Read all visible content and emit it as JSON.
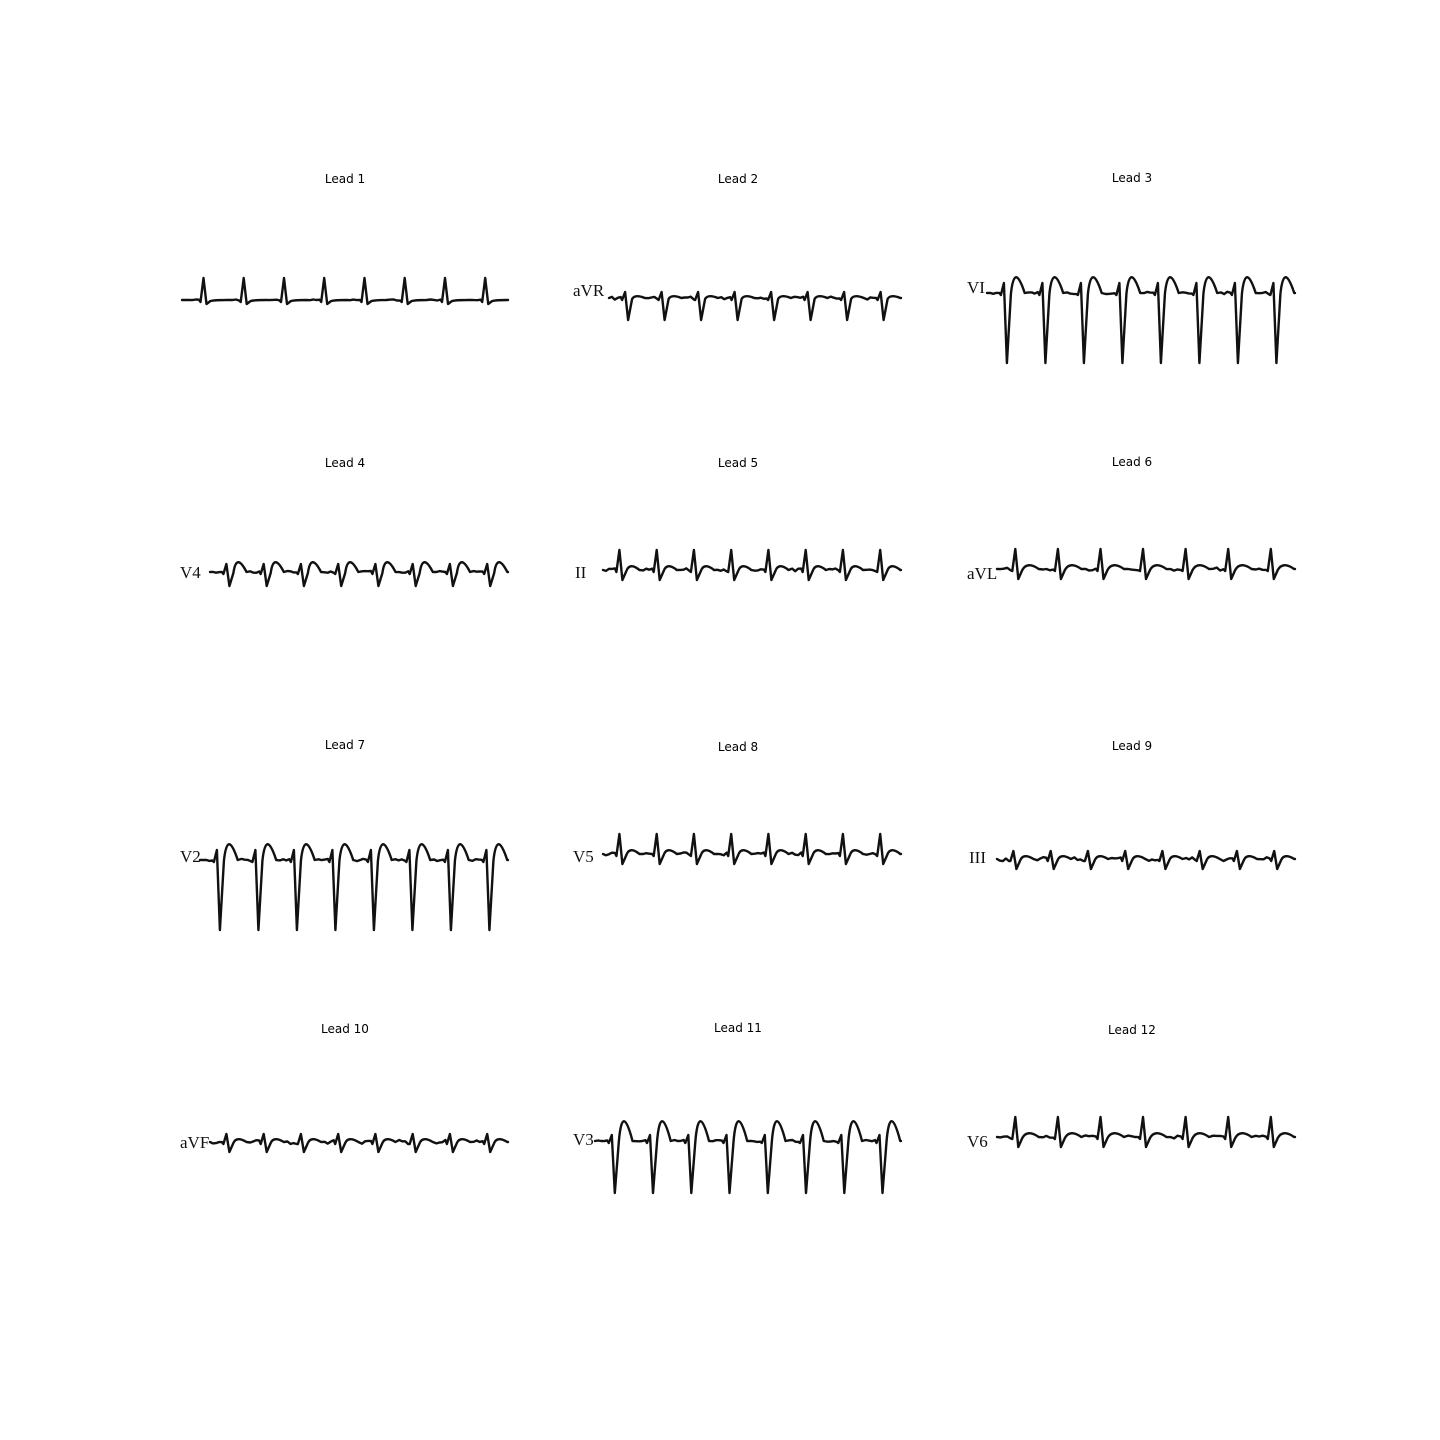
{
  "panels": [
    {
      "title": "Lead 1",
      "label": "",
      "beats": 8,
      "pattern": "upright"
    },
    {
      "title": "Lead 2",
      "label": "aVR",
      "beats": 8,
      "pattern": "small-neg"
    },
    {
      "title": "Lead 3",
      "label": "VI",
      "beats": 8,
      "pattern": "deep-neg"
    },
    {
      "title": "Lead 4",
      "label": "V4",
      "beats": 8,
      "pattern": "biphasic"
    },
    {
      "title": "Lead 5",
      "label": "II",
      "beats": 8,
      "pattern": "small-pos"
    },
    {
      "title": "Lead 6",
      "label": "aVL",
      "beats": 7,
      "pattern": "small-pos"
    },
    {
      "title": "Lead 7",
      "label": "V2",
      "beats": 8,
      "pattern": "deep-neg"
    },
    {
      "title": "Lead 8",
      "label": "V5",
      "beats": 8,
      "pattern": "small-pos"
    },
    {
      "title": "Lead 9",
      "label": "III",
      "beats": 8,
      "pattern": "flat"
    },
    {
      "title": "Lead 10",
      "label": "aVF",
      "beats": 8,
      "pattern": "flat"
    },
    {
      "title": "Lead 11",
      "label": "V3",
      "beats": 8,
      "pattern": "deep-neg-mid"
    },
    {
      "title": "Lead 12",
      "label": "V6",
      "beats": 7,
      "pattern": "small-pos"
    }
  ]
}
